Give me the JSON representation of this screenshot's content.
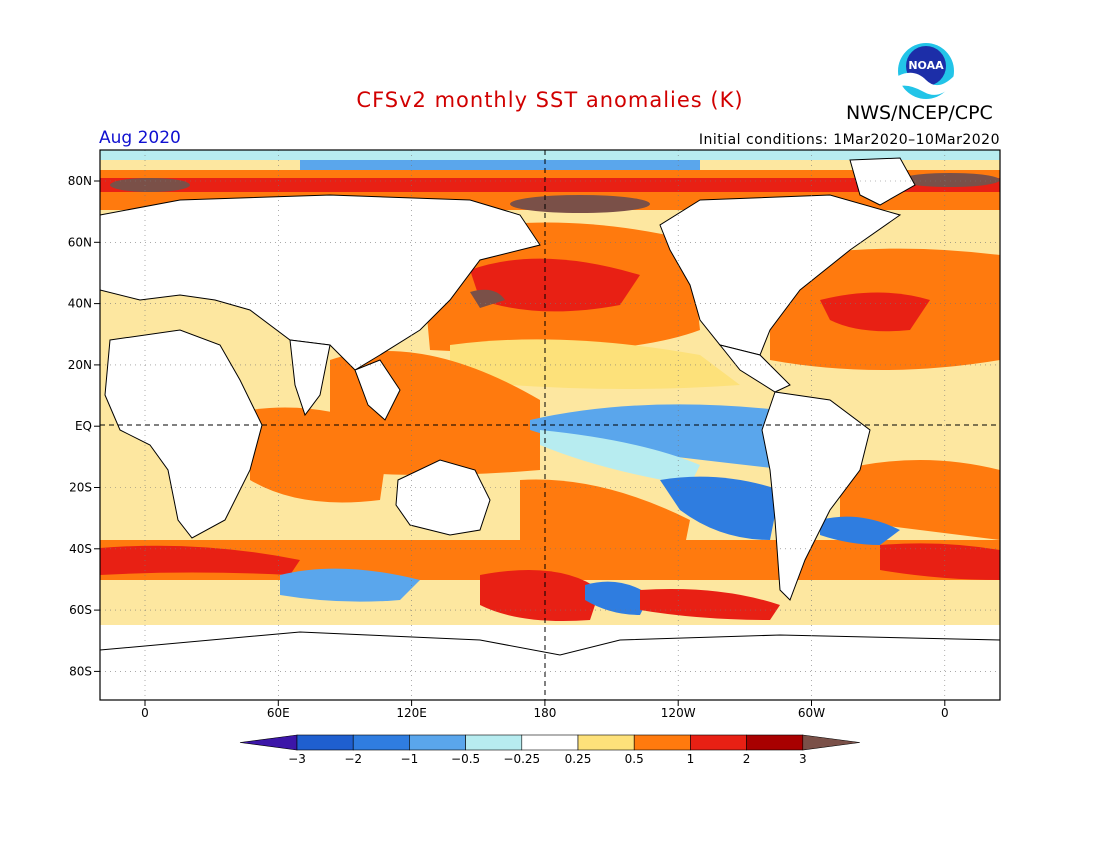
{
  "title": "CFSv2 monthly SST anomalies (K)",
  "period": "Aug 2020",
  "initial_conditions": "Initial conditions: 1Mar2020–10Mar2020",
  "agency": "NWS/NCEP/CPC",
  "logo": {
    "text": "NOAA",
    "icon": "noaa-logo"
  },
  "map": {
    "lat_labels": [
      "80N",
      "60N",
      "40N",
      "20N",
      "EQ",
      "20S",
      "40S",
      "60S",
      "80S"
    ],
    "lon_labels": [
      "0",
      "60E",
      "120E",
      "180",
      "120W",
      "60W",
      "0"
    ]
  },
  "colorbar": {
    "labels": [
      "−3",
      "−2",
      "−1",
      "−0.5",
      "−0.25",
      "0.25",
      "0.5",
      "1",
      "2",
      "3"
    ],
    "colors": [
      "#3c16a8",
      "#1f5fcf",
      "#2f7de0",
      "#5aa6ec",
      "#b7ecf0",
      "#ffffff",
      "#fde17a",
      "#ff7a0e",
      "#e82014",
      "#a80000",
      "#7a5048"
    ]
  },
  "colors": {
    "land": "#ffffff",
    "title": "#d10000",
    "period": "#1010d0"
  }
}
